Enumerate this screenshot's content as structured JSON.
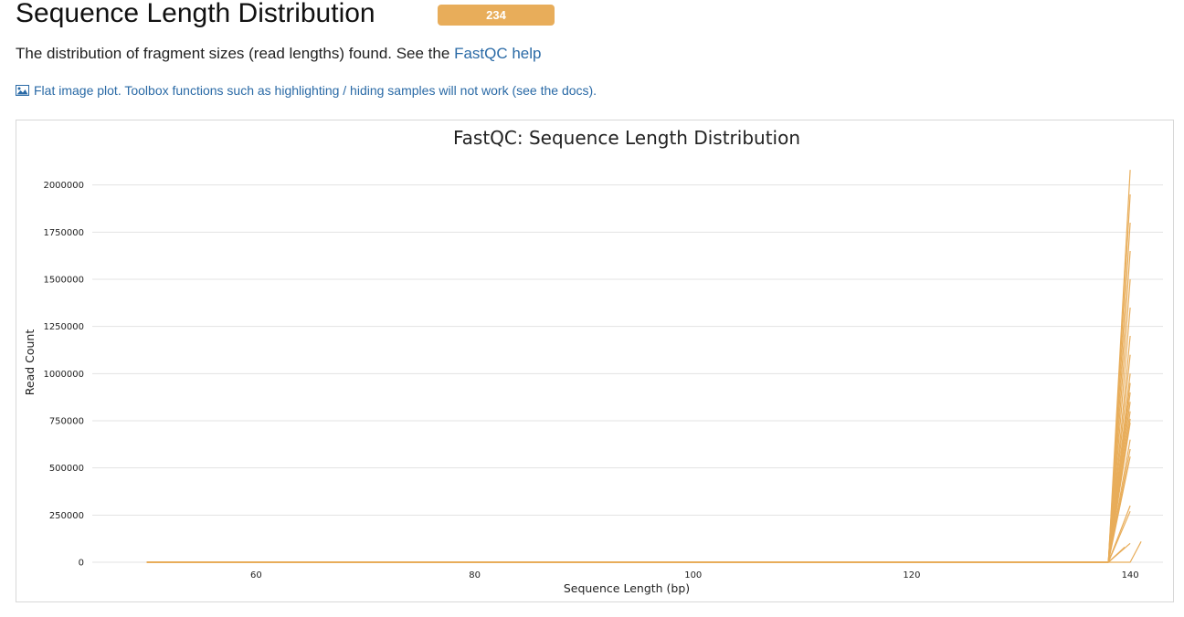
{
  "section": {
    "title": "Sequence Length Distribution",
    "status_count": "234",
    "status_color": "#e8ad5a",
    "description_text": "The distribution of fragment sizes (read lengths) found. See the",
    "help_link": "FastQC help",
    "flat_note": "Flat image plot. Toolbox functions such as highlighting / hiding samples will not work (see the docs).",
    "flat_icon": "image-icon"
  },
  "chart_data": {
    "type": "line",
    "title": "FastQC: Sequence Length Distribution",
    "xlabel": "Sequence Length (bp)",
    "ylabel": "Read Count",
    "xlim": [
      45,
      143
    ],
    "ylim": [
      0,
      2100000
    ],
    "x_ticks": [
      60,
      80,
      100,
      120,
      140
    ],
    "y_ticks": [
      0,
      250000,
      500000,
      750000,
      1000000,
      1250000,
      1500000,
      1750000,
      2000000
    ],
    "grid": true,
    "line_color": "#e8ad5a",
    "baseline_x": [
      50,
      138
    ],
    "series": [
      {
        "x": [
          50,
          138,
          140
        ],
        "y": [
          0,
          0,
          2080000
        ]
      },
      {
        "x": [
          50,
          138,
          140
        ],
        "y": [
          0,
          0,
          1950000
        ]
      },
      {
        "x": [
          50,
          138,
          140
        ],
        "y": [
          0,
          0,
          1800000
        ]
      },
      {
        "x": [
          50,
          138,
          140
        ],
        "y": [
          0,
          0,
          1650000
        ]
      },
      {
        "x": [
          50,
          138,
          140
        ],
        "y": [
          0,
          0,
          1500000
        ]
      },
      {
        "x": [
          50,
          138,
          140
        ],
        "y": [
          0,
          0,
          1350000
        ]
      },
      {
        "x": [
          50,
          138,
          140
        ],
        "y": [
          0,
          0,
          1200000
        ]
      },
      {
        "x": [
          50,
          138,
          140
        ],
        "y": [
          0,
          0,
          1100000
        ]
      },
      {
        "x": [
          50,
          138,
          140
        ],
        "y": [
          0,
          0,
          1000000
        ]
      },
      {
        "x": [
          50,
          138,
          140
        ],
        "y": [
          0,
          0,
          950000
        ]
      },
      {
        "x": [
          50,
          138,
          140
        ],
        "y": [
          0,
          0,
          900000
        ]
      },
      {
        "x": [
          50,
          138,
          140
        ],
        "y": [
          0,
          0,
          850000
        ]
      },
      {
        "x": [
          50,
          138,
          140
        ],
        "y": [
          0,
          0,
          800000
        ]
      },
      {
        "x": [
          50,
          138,
          140
        ],
        "y": [
          0,
          0,
          760000
        ]
      },
      {
        "x": [
          50,
          138,
          140
        ],
        "y": [
          0,
          0,
          740000
        ]
      },
      {
        "x": [
          50,
          138,
          140
        ],
        "y": [
          0,
          0,
          650000
        ]
      },
      {
        "x": [
          50,
          138,
          140
        ],
        "y": [
          0,
          0,
          600000
        ]
      },
      {
        "x": [
          50,
          138,
          140
        ],
        "y": [
          0,
          0,
          560000
        ]
      },
      {
        "x": [
          50,
          138,
          140
        ],
        "y": [
          0,
          0,
          300000
        ]
      },
      {
        "x": [
          50,
          138,
          140
        ],
        "y": [
          0,
          0,
          270000
        ]
      },
      {
        "x": [
          50,
          138,
          140
        ],
        "y": [
          0,
          0,
          100000
        ]
      },
      {
        "x": [
          50,
          138,
          139.5
        ],
        "y": [
          0,
          0,
          80000
        ]
      },
      {
        "x": [
          50,
          140,
          141
        ],
        "y": [
          0,
          0,
          110000
        ]
      }
    ]
  }
}
